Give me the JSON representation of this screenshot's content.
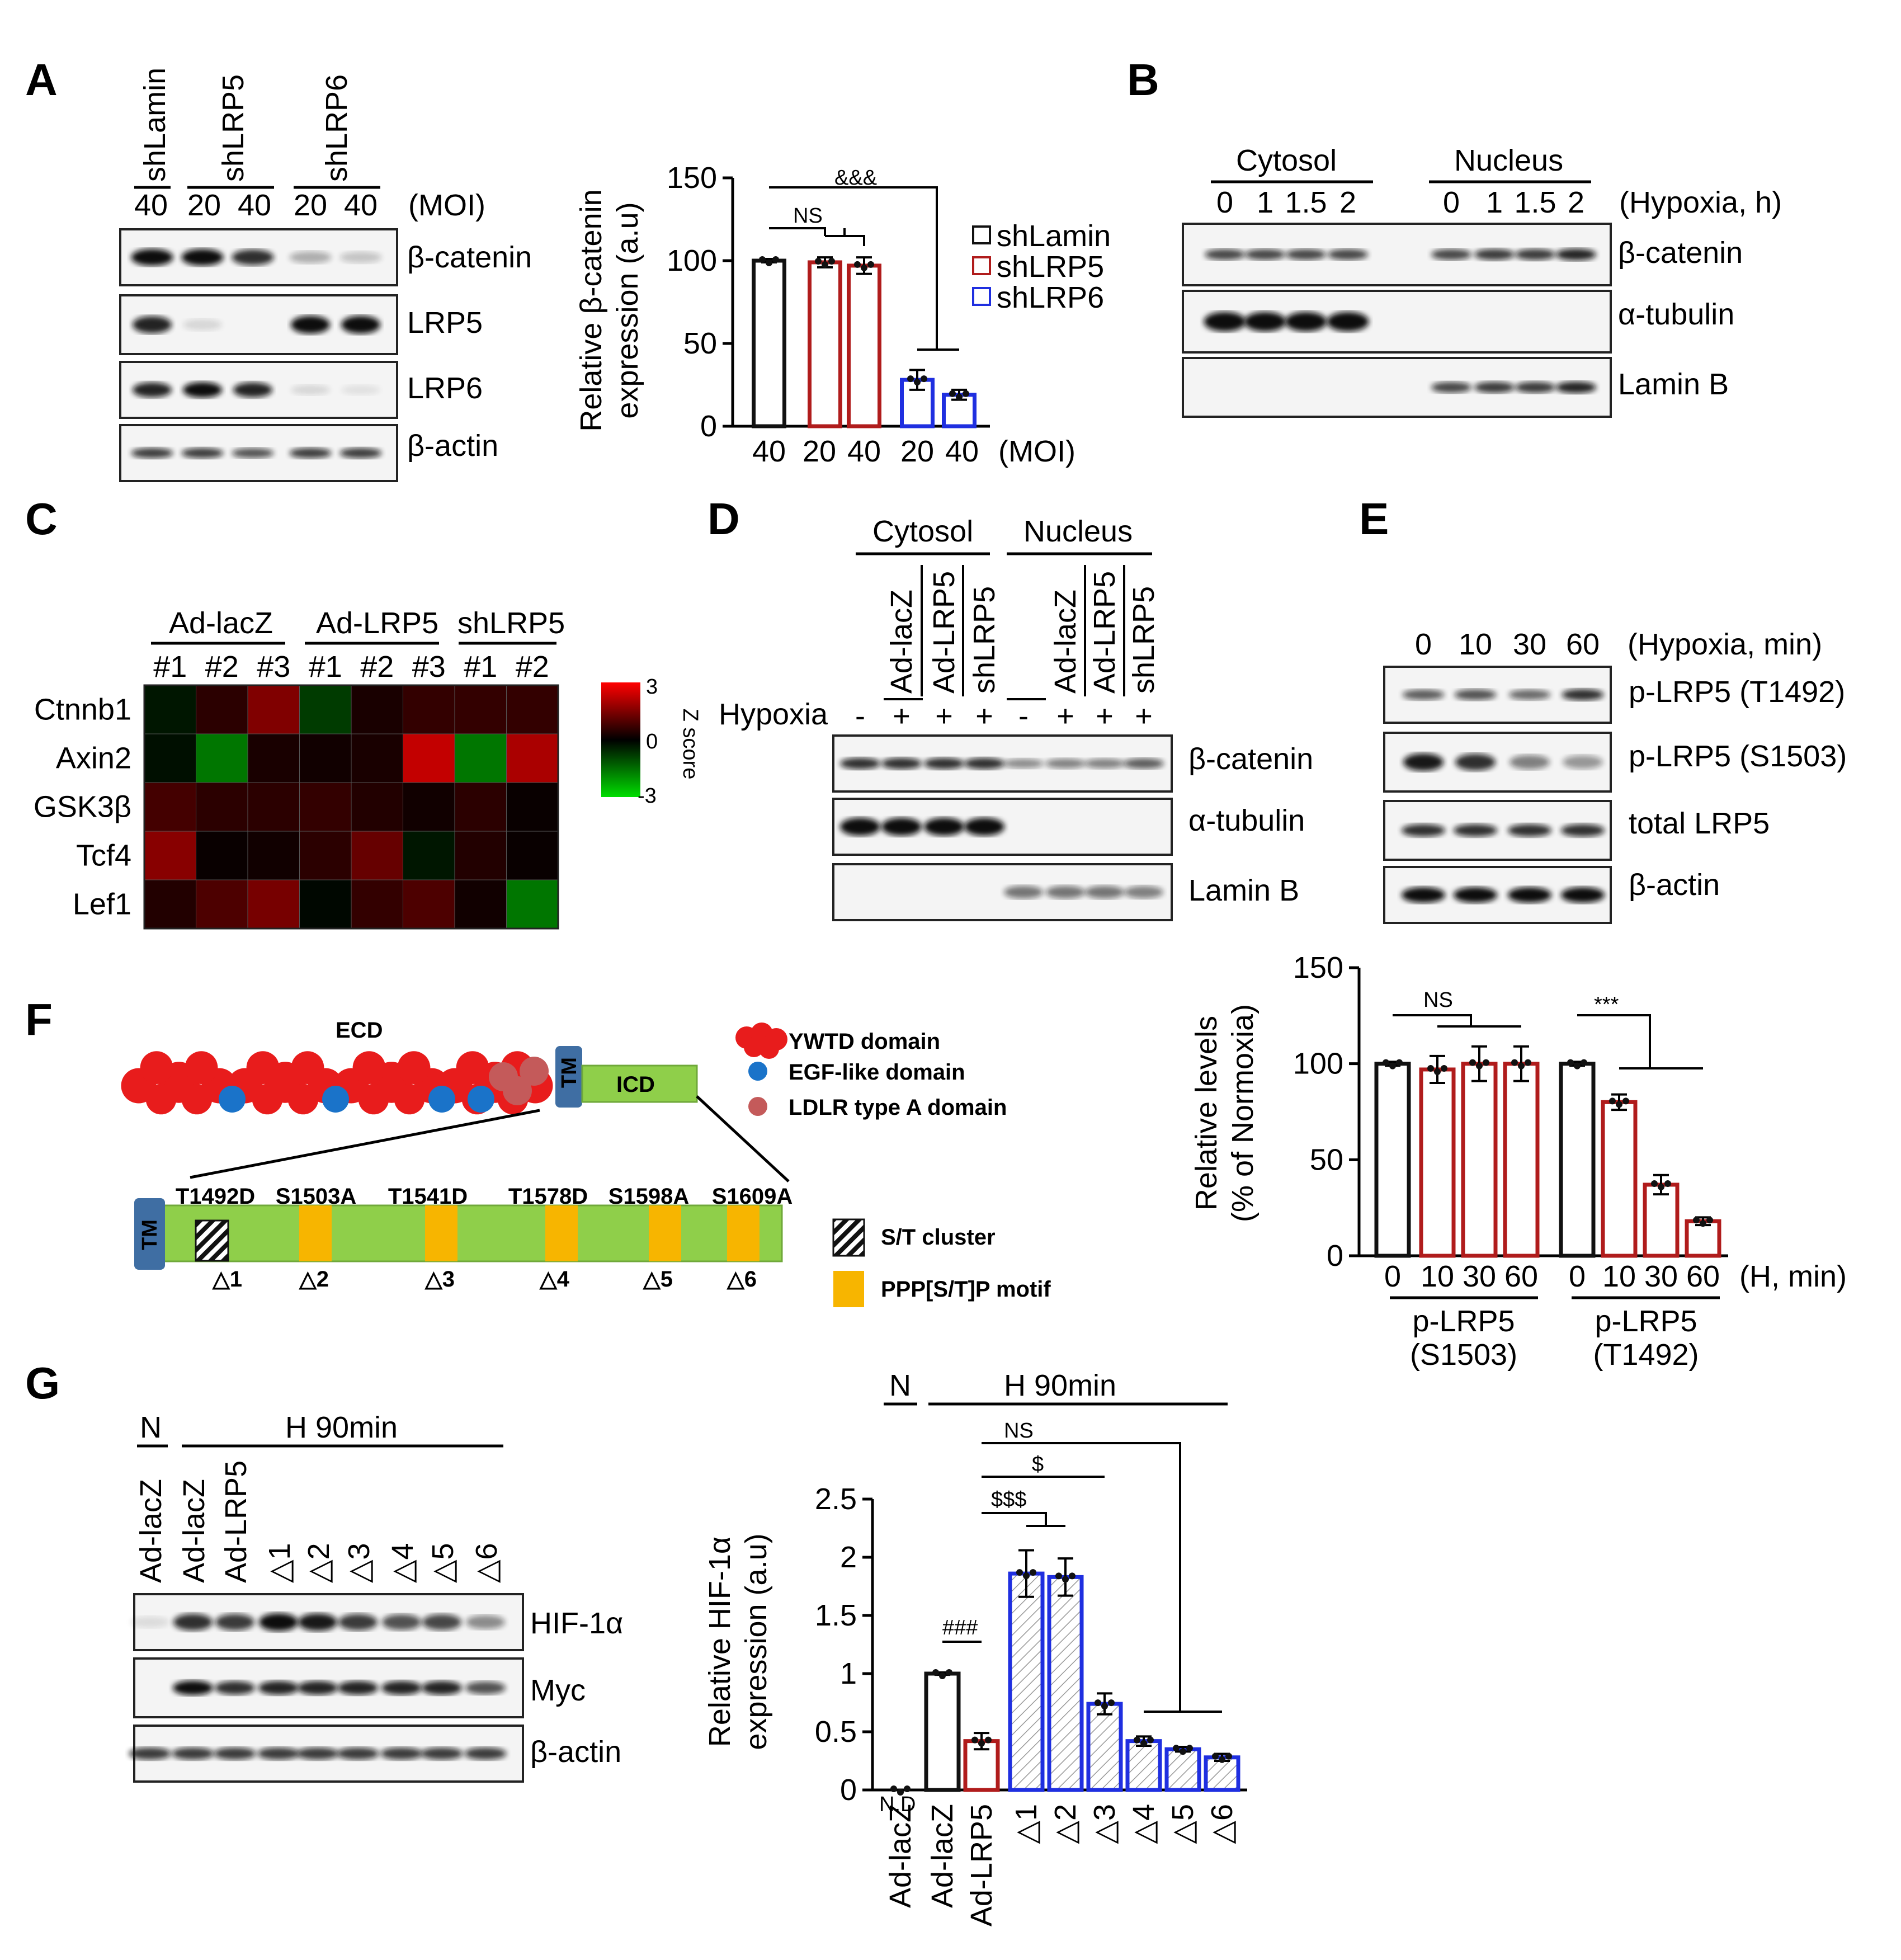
{
  "panels": {
    "A": "A",
    "B": "B",
    "C": "C",
    "D": "D",
    "E": "E",
    "F": "F",
    "G": "G"
  },
  "colors": {
    "black": "#111111",
    "red": "#b01c1c",
    "blue": "#1f2fe0",
    "domain_red": "#e81c1c",
    "egf_blue": "#1a73c9",
    "ldlr": "#c45a5a",
    "icd_green": "#8fcf4a",
    "tm_blue": "#3f6ea3",
    "pppstp": "#f7b500",
    "heat_pos": "#ff0000",
    "heat_neg": "#00cc00"
  },
  "icons": {
    "st_cluster": "hatched-square-icon",
    "ppp_motif": "orange-square-icon",
    "ywtd": "red-cluster-icon",
    "egf": "blue-dot-icon",
    "ldlr": "rose-dot-icon"
  },
  "panelA": {
    "blot": {
      "groups": [
        "shLamin",
        "shLRP5",
        "shLRP6"
      ],
      "moi": [
        "40",
        "20",
        "40",
        "20",
        "40"
      ],
      "moi_unit": "(MOI)",
      "rows": [
        "β-catenin",
        "LRP5",
        "LRP6",
        "β-actin"
      ]
    },
    "chart": {
      "ylabel_1": "Relative β-catenin",
      "ylabel_2": "expression (a.u)",
      "yticks": [
        "0",
        "50",
        "100",
        "150"
      ],
      "xticks": [
        "40",
        "20",
        "40",
        "20",
        "40"
      ],
      "xunit": "(MOI)",
      "sig_ns": "NS",
      "sig_amp": "&&&",
      "legend": [
        "shLamin",
        "shLRP5",
        "shLRP6"
      ]
    }
  },
  "panelB": {
    "groups": [
      "Cytosol",
      "Nucleus"
    ],
    "times": [
      "0",
      "1",
      "1.5",
      "2",
      "0",
      "1",
      "1.5",
      "2"
    ],
    "unit": "(Hypoxia, h)",
    "rows": [
      "β-catenin",
      "α-tubulin",
      "Lamin B"
    ]
  },
  "panelC": {
    "groups": [
      "Ad-lacZ",
      "Ad-LRP5",
      "shLRP5"
    ],
    "samples": [
      "#1",
      "#2",
      "#3",
      "#1",
      "#2",
      "#3",
      "#1",
      "#2"
    ],
    "genes": [
      "Ctnnb1",
      "Axin2",
      "GSK3β",
      "Tcf4",
      "Lef1"
    ],
    "scale": {
      "max": "3",
      "mid": "0",
      "min": "-3",
      "label": "Z score"
    }
  },
  "panelD": {
    "groups": [
      "Cytosol",
      "Nucleus"
    ],
    "lanes": [
      "Ad-lacZ",
      "Ad-LRP5",
      "shLRP5",
      "Ad-lacZ",
      "Ad-LRP5",
      "shLRP5"
    ],
    "hypoxia_label": "Hypoxia",
    "signs": [
      "-",
      "+",
      "+",
      "+",
      "-",
      "+",
      "+",
      "+"
    ],
    "rows": [
      "β-catenin",
      "α-tubulin",
      "Lamin B"
    ]
  },
  "panelE": {
    "blot": {
      "times": [
        "0",
        "10",
        "30",
        "60"
      ],
      "unit": "(Hypoxia, min)",
      "rows": [
        "p-LRP5 (T1492)",
        "p-LRP5 (S1503)",
        "total LRP5",
        "β-actin"
      ]
    },
    "chart": {
      "ylabel_1": "Relative levels",
      "ylabel_2": "(% of Normoxia)",
      "yticks": [
        "0",
        "50",
        "100",
        "150"
      ],
      "xticks": [
        "0",
        "10",
        "30",
        "60",
        "0",
        "10",
        "30",
        "60"
      ],
      "xunit": "(H, min)",
      "groups": [
        {
          "l1": "p-LRP5",
          "l2": "(S1503)"
        },
        {
          "l1": "p-LRP5",
          "l2": "(T1492)"
        }
      ],
      "sig_ns": "NS",
      "sig_star": "***"
    }
  },
  "panelF": {
    "ecd": "ECD",
    "icd": "ICD",
    "tm": "TM",
    "legend": [
      "YWTD domain",
      "EGF-like domain",
      "LDLR type A domain",
      "S/T cluster",
      "PPP[S/T]P motif"
    ],
    "mutations": [
      "T1492D",
      "S1503A",
      "T1541D",
      "T1578D",
      "S1598A",
      "S1609A"
    ],
    "deltas": [
      "△1",
      "△2",
      "△3",
      "△4",
      "△5",
      "△6"
    ]
  },
  "panelG": {
    "blot": {
      "n_label": "N",
      "h_label": "H 90min",
      "lanes": [
        "Ad-lacZ",
        "Ad-lacZ",
        "Ad-LRP5",
        "△1",
        "△2",
        "△3",
        "△4",
        "△5",
        "△6"
      ],
      "rows": [
        "HIF-1α",
        "Myc",
        "β-actin"
      ]
    },
    "chart": {
      "ylabel_1": "Relative HIF-1α",
      "ylabel_2": "expression (a.u)",
      "yticks": [
        "0",
        "0.5",
        "1",
        "1.5",
        "2",
        "2.5"
      ],
      "n_label": "N",
      "h_label": "H 90min",
      "xticks": [
        "Ad-lacZ",
        "Ad-lacZ",
        "Ad-LRP5",
        "△1",
        "△2",
        "△3",
        "△4",
        "△5",
        "△6"
      ],
      "nd": "N.D",
      "sig_ns": "NS",
      "sig_s1": "$",
      "sig_s3": "$$$",
      "sig_hash": "###"
    }
  },
  "chart_data": [
    {
      "type": "bar",
      "ylabel": "Relative β-catenin expression (a.u)",
      "categories": [
        "40",
        "20",
        "40",
        "20",
        "40"
      ],
      "ylim": [
        0,
        150
      ],
      "series": [
        {
          "name": "shLamin",
          "values": [
            100,
            null,
            null,
            null,
            null
          ]
        },
        {
          "name": "shLRP5",
          "values": [
            null,
            99,
            97,
            null,
            null
          ]
        },
        {
          "name": "shLRP6",
          "values": [
            null,
            null,
            null,
            28,
            19
          ]
        }
      ],
      "errors": [
        1,
        3,
        5,
        6,
        3
      ]
    },
    {
      "type": "bar",
      "ylabel": "Relative levels (% of Normoxia)",
      "categories": [
        "0",
        "10",
        "30",
        "60",
        "0",
        "10",
        "30",
        "60"
      ],
      "ylim": [
        0,
        150
      ],
      "values": [
        100,
        97,
        100,
        100,
        100,
        80,
        37,
        18
      ],
      "errors": [
        1,
        7,
        9,
        9,
        1,
        4,
        5,
        2
      ]
    },
    {
      "type": "bar",
      "ylabel": "Relative HIF-1α expression (a.u)",
      "categories": [
        "Ad-lacZ",
        "Ad-lacZ",
        "Ad-LRP5",
        "△1",
        "△2",
        "△3",
        "△4",
        "△5",
        "△6"
      ],
      "ylim": [
        0,
        2.5
      ],
      "values": [
        0,
        1,
        0.42,
        1.86,
        1.83,
        0.74,
        0.42,
        0.35,
        0.28
      ],
      "errors": [
        0,
        0.01,
        0.07,
        0.2,
        0.16,
        0.09,
        0.04,
        0.02,
        0.03
      ]
    },
    {
      "type": "heatmap",
      "rows": [
        "Ctnnb1",
        "Axin2",
        "GSK3β",
        "Tcf4",
        "Lef1"
      ],
      "columns": [
        "#1",
        "#2",
        "#3",
        "#1",
        "#2",
        "#3",
        "#1",
        "#2"
      ],
      "values": [
        [
          -0.3,
          0.5,
          1.5,
          -0.8,
          0.3,
          0.6,
          0.6,
          0.6
        ],
        [
          -0.2,
          -1.6,
          0.3,
          0.2,
          0.3,
          2.3,
          -1.6,
          2.0
        ],
        [
          0.8,
          0.5,
          0.5,
          0.6,
          0.4,
          0.2,
          0.5,
          0.1
        ],
        [
          1.6,
          0.1,
          0.2,
          0.5,
          1.2,
          -0.3,
          0.4,
          0.1
        ],
        [
          0.4,
          0.9,
          1.4,
          -0.1,
          0.6,
          0.9,
          0.2,
          -1.6
        ]
      ],
      "zlim": [
        -3,
        3
      ]
    }
  ]
}
